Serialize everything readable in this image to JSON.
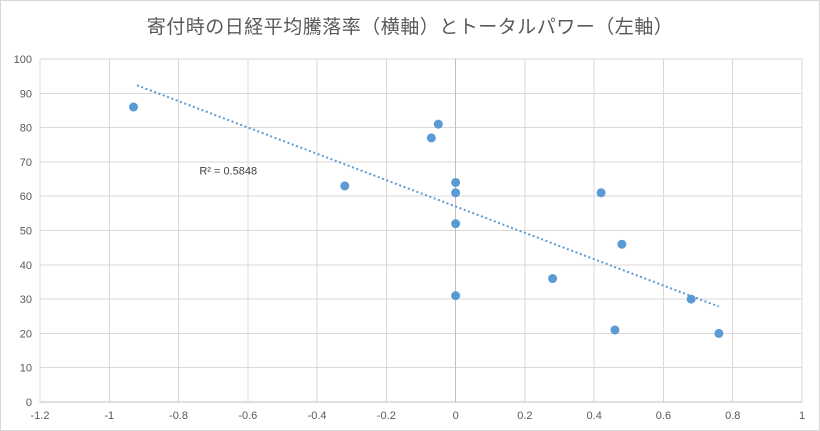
{
  "chart_data": {
    "type": "scatter",
    "title": "寄付時の日経平均騰落率（横軸）とトータルパワー（左軸）",
    "x_axis": {
      "min": -1.2,
      "max": 1,
      "tick_values": [
        -1.2,
        -1,
        -0.8,
        -0.6,
        -0.4,
        -0.2,
        0,
        0.2,
        0.4,
        0.6,
        0.8,
        1
      ],
      "tick_labels": [
        "-1.2",
        "-1",
        "-0.8",
        "-0.6",
        "-0.4",
        "-0.2",
        "0",
        "0.2",
        "0.4",
        "0.6",
        "0.8",
        "1"
      ]
    },
    "y_axis": {
      "min": 0,
      "max": 100,
      "tick_values": [
        0,
        10,
        20,
        30,
        40,
        50,
        60,
        70,
        80,
        90,
        100
      ],
      "tick_labels": [
        "0",
        "10",
        "20",
        "30",
        "40",
        "50",
        "60",
        "70",
        "80",
        "90",
        "100"
      ]
    },
    "grid": true,
    "points": [
      {
        "x": -0.93,
        "y": 86
      },
      {
        "x": -0.32,
        "y": 63
      },
      {
        "x": -0.07,
        "y": 77
      },
      {
        "x": -0.05,
        "y": 81
      },
      {
        "x": 0,
        "y": 64
      },
      {
        "x": 0,
        "y": 61
      },
      {
        "x": 0,
        "y": 52
      },
      {
        "x": 0,
        "y": 31
      },
      {
        "x": 0.28,
        "y": 36
      },
      {
        "x": 0.42,
        "y": 61
      },
      {
        "x": 0.46,
        "y": 21
      },
      {
        "x": 0.48,
        "y": 46
      },
      {
        "x": 0.68,
        "y": 30
      },
      {
        "x": 0.76,
        "y": 20
      }
    ],
    "trendline": {
      "style": "dotted",
      "slope": -38.4,
      "intercept": 57,
      "x_start": -0.92,
      "x_end": 0.76
    },
    "annotation": {
      "text": "R² = 0.5848",
      "x": -0.74,
      "y": 67.5
    },
    "colors": {
      "marker": "#5B9BD5",
      "trendline": "#5B9BD5",
      "gridline": "#D9D9D9",
      "axis_line": "#BFBFBF",
      "axis_text": "#595959",
      "title_text": "#595959",
      "annotation_text": "#404040"
    }
  }
}
